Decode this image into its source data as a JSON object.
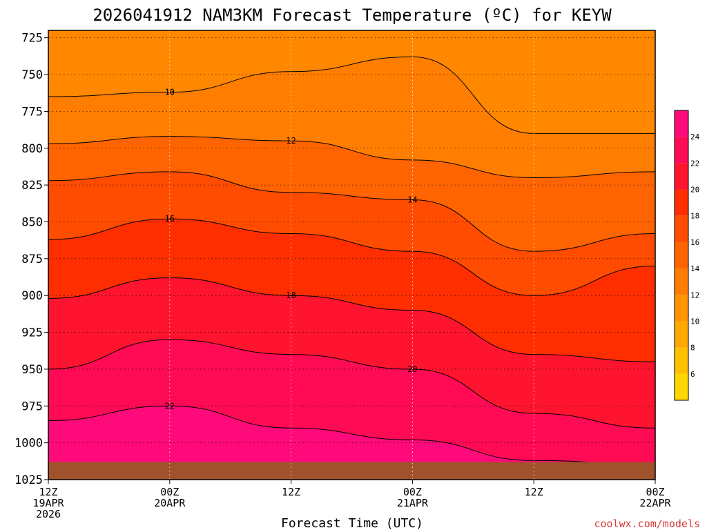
{
  "chart_data": {
    "type": "heatmap",
    "title": "2026041912 NAM3KM Forecast Temperature (ºC) for KEYW",
    "xlabel": "Forecast Time (UTC)",
    "ylabel": "",
    "credit": "coolwx.com/models",
    "y_axis": {
      "scale": "pressure-linear",
      "ticks": [
        725,
        750,
        775,
        800,
        825,
        850,
        875,
        900,
        925,
        950,
        975,
        1000,
        1025
      ],
      "range": [
        720,
        1025
      ]
    },
    "x_axis": {
      "range": [
        "2026-04-19T12:00Z",
        "2026-04-22T00:00Z"
      ],
      "ticks": [
        {
          "line1": "12Z",
          "line2": "19APR",
          "line3": "2026"
        },
        {
          "line1": "00Z",
          "line2": "20APR",
          "line3": ""
        },
        {
          "line1": "12Z",
          "line2": "",
          "line3": ""
        },
        {
          "line1": "00Z",
          "line2": "21APR",
          "line3": ""
        },
        {
          "line1": "12Z",
          "line2": "",
          "line3": ""
        },
        {
          "line1": "00Z",
          "line2": "22APR",
          "line3": ""
        }
      ],
      "tick_times": [
        "2026-04-19T12:00Z",
        "2026-04-20T00:00Z",
        "2026-04-20T12:00Z",
        "2026-04-21T00:00Z",
        "2026-04-21T12:00Z",
        "2026-04-22T00:00Z"
      ]
    },
    "colorbar": {
      "ticks": [
        6,
        8,
        10,
        12,
        14,
        16,
        18,
        20,
        22,
        24
      ],
      "colors": [
        "#ffd700",
        "#ffc000",
        "#ffa800",
        "#ff9500",
        "#ff7d00",
        "#ff6400",
        "#ff4c00",
        "#ff2e00",
        "#ff1430",
        "#ff0a55",
        "#ff0a7a"
      ]
    },
    "contour_levels": [
      10,
      12,
      14,
      16,
      18,
      20,
      22
    ],
    "contour_labels": [
      "10",
      "12",
      "14",
      "16",
      "18",
      "20",
      "22"
    ],
    "series": [
      {
        "level": 10,
        "x": [
          0,
          12,
          24,
          36,
          48,
          60
        ],
        "y": [
          765,
          762,
          748,
          738,
          790,
          790
        ]
      },
      {
        "level": 12,
        "x": [
          0,
          12,
          24,
          36,
          48,
          60
        ],
        "y": [
          797,
          792,
          795,
          808,
          820,
          816
        ]
      },
      {
        "level": 14,
        "x": [
          0,
          12,
          24,
          36,
          48,
          60
        ],
        "y": [
          822,
          816,
          830,
          835,
          870,
          858
        ]
      },
      {
        "level": 16,
        "x": [
          0,
          12,
          24,
          36,
          48,
          60
        ],
        "y": [
          862,
          848,
          858,
          870,
          900,
          880
        ]
      },
      {
        "level": 18,
        "x": [
          0,
          12,
          24,
          36,
          48,
          60
        ],
        "y": [
          902,
          888,
          900,
          910,
          940,
          945
        ]
      },
      {
        "level": 20,
        "x": [
          0,
          12,
          24,
          36,
          48,
          60
        ],
        "y": [
          950,
          930,
          940,
          950,
          980,
          990
        ]
      },
      {
        "level": 22,
        "x": [
          0,
          12,
          24,
          36,
          48,
          60
        ],
        "y": [
          985,
          975,
          990,
          998,
          1012,
          1015
        ]
      }
    ],
    "surface_pressure": 1013,
    "grid": true
  }
}
